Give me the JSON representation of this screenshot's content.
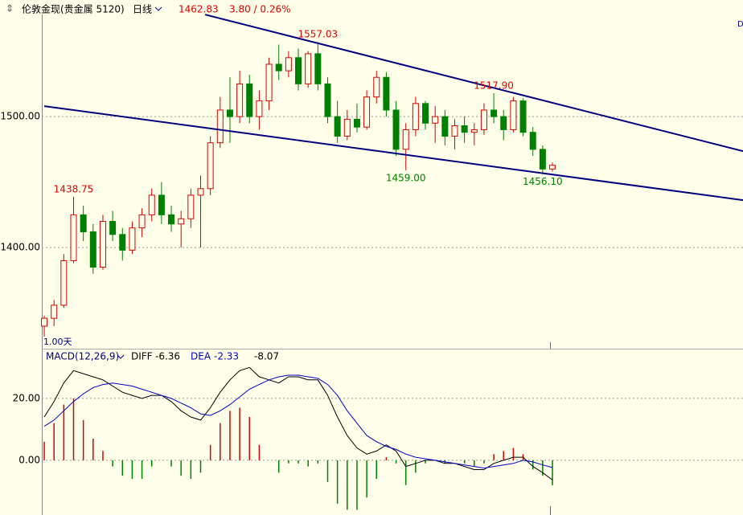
{
  "header": {
    "symbol": "伦敦金现(贵金属 5120)",
    "period": "日线",
    "last": 1462.83,
    "change": "3.80 / 0.26%",
    "corner_mark": "D"
  },
  "chart_data": [
    {
      "type": "candlestick",
      "period_label": "1.00天",
      "up_color": "#dd0000",
      "down_color": "#008000",
      "open": [
        1340,
        1346,
        1356,
        1390,
        1425,
        1412,
        1385,
        1420,
        1410,
        1398,
        1415,
        1425,
        1440,
        1425,
        1418,
        1422,
        1440,
        1445,
        1480,
        1505,
        1500,
        1525,
        1500,
        1512,
        1540,
        1535,
        1545,
        1525,
        1548,
        1525,
        1500,
        1485,
        1498,
        1492,
        1515,
        1530,
        1505,
        1475,
        1490,
        1510,
        1495,
        1500,
        1485,
        1493,
        1488,
        1490,
        1505,
        1500,
        1490,
        1512,
        1488,
        1475,
        1460
      ],
      "high": [
        1348,
        1360,
        1395,
        1438.75,
        1432,
        1418,
        1425,
        1428,
        1415,
        1420,
        1430,
        1445,
        1450,
        1432,
        1428,
        1445,
        1455,
        1485,
        1515,
        1530,
        1535,
        1532,
        1520,
        1545,
        1555,
        1550,
        1552,
        1550,
        1557.03,
        1530,
        1512,
        1505,
        1510,
        1520,
        1535,
        1534,
        1512,
        1495,
        1515,
        1512,
        1508,
        1505,
        1498,
        1500,
        1495,
        1510,
        1517.9,
        1505,
        1515,
        1514,
        1492,
        1478,
        1465
      ],
      "low": [
        1332,
        1340,
        1354,
        1388,
        1405,
        1380,
        1383,
        1405,
        1390,
        1395,
        1408,
        1420,
        1418,
        1412,
        1400,
        1415,
        1400,
        1440,
        1476,
        1480,
        1495,
        1495,
        1490,
        1505,
        1528,
        1530,
        1520,
        1522,
        1520,
        1495,
        1480,
        1482,
        1488,
        1490,
        1510,
        1500,
        1470,
        1459,
        1485,
        1490,
        1480,
        1478,
        1475,
        1480,
        1478,
        1486,
        1495,
        1482,
        1488,
        1485,
        1470,
        1456.1,
        1458
      ],
      "close": [
        1346,
        1356,
        1390,
        1425,
        1412,
        1385,
        1420,
        1410,
        1398,
        1415,
        1425,
        1440,
        1425,
        1418,
        1422,
        1440,
        1445,
        1480,
        1505,
        1500,
        1525,
        1500,
        1512,
        1540,
        1535,
        1545,
        1525,
        1548,
        1525,
        1500,
        1485,
        1498,
        1492,
        1515,
        1530,
        1505,
        1475,
        1490,
        1510,
        1495,
        1500,
        1485,
        1493,
        1488,
        1490,
        1505,
        1500,
        1490,
        1512,
        1488,
        1475,
        1460,
        1462.83
      ],
      "xlim": [
        -0.25,
        71.5
      ],
      "ylim": [
        1324,
        1578
      ],
      "yticks": [
        {
          "value": 1400,
          "label": "1400.00"
        },
        {
          "value": 1500,
          "label": "1500.00"
        }
      ],
      "grid": true,
      "trendlines": [
        {
          "color": "#000080",
          "from": [
            16.46,
            1577.9
          ],
          "to": [
            71.5,
            1473.6
          ]
        },
        {
          "color": "#000080",
          "from": [
            0,
            1508
          ],
          "to": [
            71.5,
            1436.2
          ]
        }
      ],
      "annotations": [
        {
          "value": 1438.75,
          "label": "1438.75",
          "at": "high",
          "color": "#dd0000"
        },
        {
          "value": 1557.03,
          "label": "1557.03",
          "at": "high",
          "color": "#dd0000"
        },
        {
          "value": 1517.9,
          "label": "1517.90",
          "at": "high",
          "color": "#dd0000"
        },
        {
          "value": 1459,
          "label": "1459.00",
          "at": "low",
          "color": "#008000"
        },
        {
          "value": 1456.1,
          "label": "1456.10",
          "at": "low",
          "color": "#008000"
        }
      ]
    },
    {
      "type": "macd",
      "title": "MACD(12,26,9)",
      "series": [
        {
          "name": "DIFF",
          "color": "#000000",
          "values": [
            14,
            19,
            25,
            29,
            28,
            27,
            26,
            24,
            22,
            21,
            20,
            21,
            21,
            19,
            16,
            14,
            13,
            17,
            22,
            26,
            29,
            30,
            27,
            26,
            25,
            27,
            27,
            26,
            26,
            21,
            14,
            8,
            4,
            2,
            3,
            5,
            3,
            -2,
            -1,
            0,
            0,
            -1,
            -1,
            -2,
            -3,
            -3,
            -1,
            0,
            1,
            1,
            -2,
            -4,
            -6.36
          ]
        },
        {
          "name": "DEA",
          "color": "#0000cc",
          "values": [
            11,
            13,
            16,
            19,
            21.5,
            23.5,
            24.5,
            25,
            24.5,
            24,
            23,
            22,
            21,
            20,
            18.5,
            17,
            15,
            14.5,
            16,
            18,
            20.5,
            23,
            24.5,
            26,
            27,
            27.5,
            27.5,
            27,
            26.5,
            24.5,
            21,
            16,
            12,
            8,
            6,
            4.5,
            3.5,
            2,
            1,
            0.5,
            0,
            -0.5,
            -1,
            -1.5,
            -2,
            -2.5,
            -2,
            -1.5,
            -1,
            0,
            -0.5,
            -1.5,
            -2.33
          ]
        }
      ],
      "histogram": {
        "up_color": "#dd0000",
        "down_color": "#008000",
        "values": [
          6,
          12,
          18,
          20,
          13,
          7,
          3,
          -2,
          -5,
          -6,
          -6,
          -2,
          0,
          -2,
          -5,
          -6,
          -4,
          5,
          12,
          16,
          17,
          14,
          5,
          0,
          -4,
          -1,
          -1,
          -2,
          -1,
          -7,
          -14,
          -16,
          -16,
          -12,
          -6,
          1,
          -1,
          -8,
          -4,
          -1,
          0,
          -1,
          0,
          -1,
          -2,
          -1,
          2,
          3,
          4,
          2,
          -3,
          -5,
          -8.07
        ]
      },
      "xlim": [
        -0.25,
        71.5
      ],
      "ylim": [
        -16.9,
        35.3
      ],
      "yticks": [
        {
          "value": 0,
          "label": "0.00"
        },
        {
          "value": 20,
          "label": "20.00"
        }
      ],
      "grid": true
    }
  ]
}
